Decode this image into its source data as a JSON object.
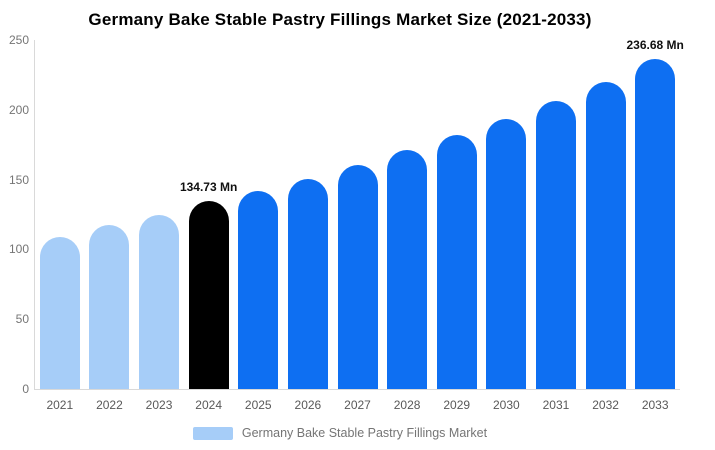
{
  "title": "Germany Bake Stable Pastry Fillings Market Size (2021-2033)",
  "chart_data": {
    "type": "bar",
    "categories": [
      "2021",
      "2022",
      "2023",
      "2024",
      "2025",
      "2026",
      "2027",
      "2028",
      "2029",
      "2030",
      "2031",
      "2032",
      "2033"
    ],
    "values": [
      109,
      117.5,
      125,
      134.73,
      141.5,
      150.5,
      160.5,
      171,
      182,
      193.5,
      206.5,
      220,
      236.68
    ],
    "bar_colors": [
      "#A6CDF8",
      "#A6CDF8",
      "#A6CDF8",
      "#000000",
      "#0E6FF2",
      "#0E6FF2",
      "#0E6FF2",
      "#0E6FF2",
      "#0E6FF2",
      "#0E6FF2",
      "#0E6FF2",
      "#0E6FF2",
      "#0E6FF2"
    ],
    "title": "Germany Bake Stable Pastry Fillings Market Size (2021-2033)",
    "xlabel": "",
    "ylabel": "",
    "ylim": [
      0,
      250
    ],
    "yticks": [
      0,
      50,
      100,
      150,
      200,
      250
    ],
    "grid": false,
    "annotations": [
      {
        "index": 3,
        "text": "134.73 Mn"
      },
      {
        "index": 12,
        "text": "236.68 Mn"
      }
    ],
    "legend_position": "bottom",
    "legend": {
      "label": "Germany Bake Stable Pastry Fillings Market",
      "swatch_color": "#A6CDF8"
    }
  },
  "colors": {
    "background": "#FFFFFF",
    "axis_line": "#D9D9D9",
    "y_tick_text": "#757575",
    "x_tick_text": "#595959",
    "title_text": "#000000",
    "annotation_text": "#111111",
    "legend_text": "#757575",
    "bar_light_blue": "#A6CDF8",
    "bar_black": "#000000",
    "bar_blue": "#0E6FF2"
  }
}
